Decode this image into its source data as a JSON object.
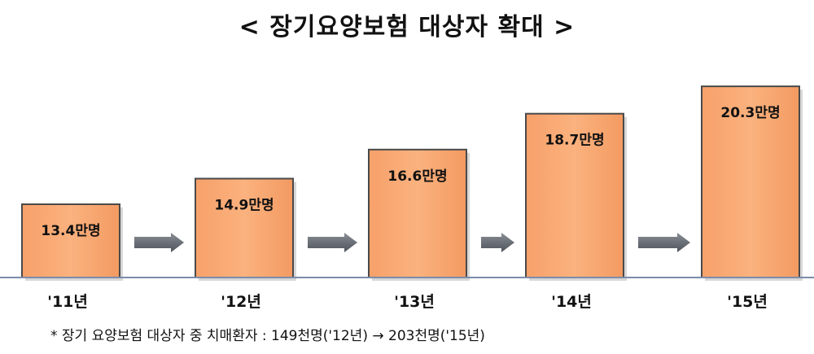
{
  "title": "< 장기요양보험 대상자 확대 >",
  "footnote": "* 장기 요양보험 대상자 중 치매환자 : 149천명('12년) → 203천명('15년)",
  "colors": {
    "bar_fill": "#F9A870",
    "bar_edge": "#4A4A4A",
    "arrow": "#6E737A",
    "baseline": "#7B8CA8"
  },
  "chart_data": {
    "type": "bar",
    "categories": [
      "'11년",
      "'12년",
      "'13년",
      "'14년",
      "'15년"
    ],
    "values": [
      13.4,
      14.9,
      16.6,
      18.7,
      20.3
    ],
    "value_labels": [
      "13.4만명",
      "14.9만명",
      "16.6만명",
      "18.7만명",
      "20.3만명"
    ],
    "unit": "만명",
    "grid": false,
    "legend": "none"
  }
}
